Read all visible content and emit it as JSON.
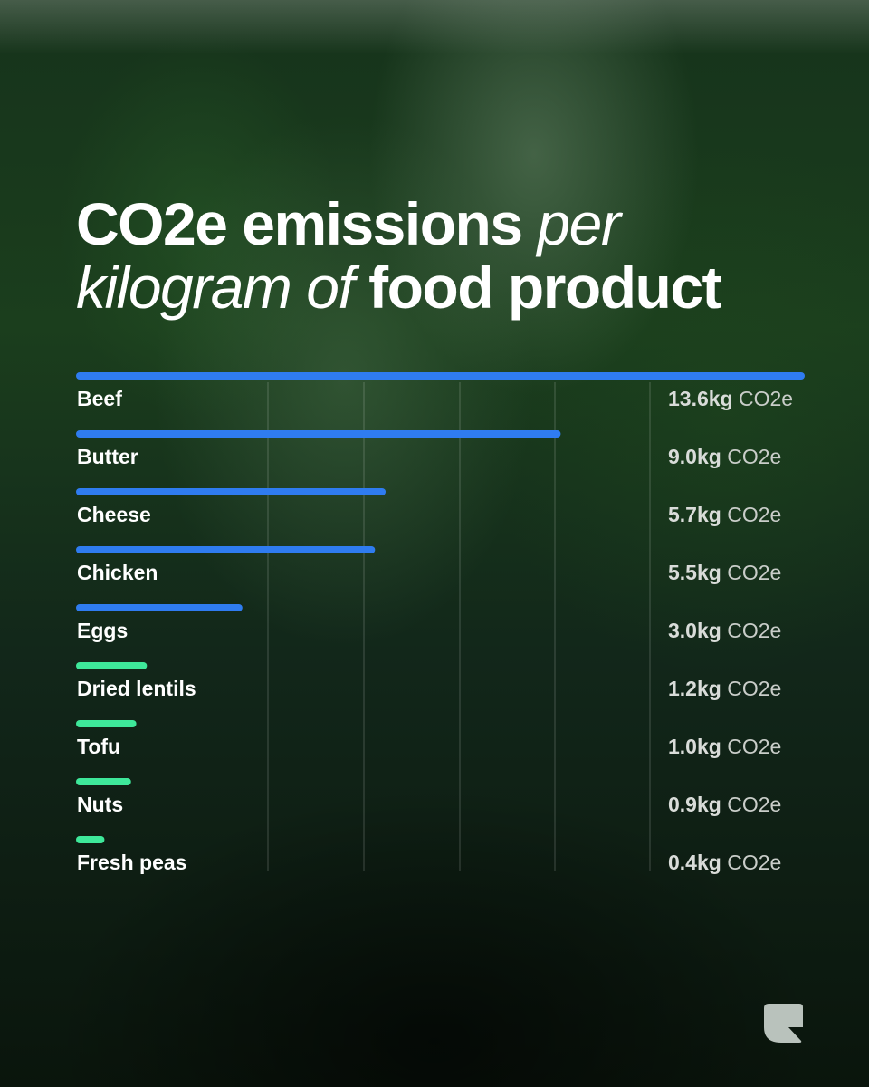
{
  "title": {
    "part1": "CO2e emissions",
    "part2": "per",
    "part3": "kilogram of",
    "part4": "food product"
  },
  "chart_data": {
    "type": "bar",
    "orientation": "horizontal",
    "title": "CO2e emissions per kilogram of food product",
    "unit": "kg CO2e",
    "unit_label": "CO2e",
    "xlim": [
      0,
      13.6
    ],
    "categories": [
      "Beef",
      "Butter",
      "Cheese",
      "Chicken",
      "Eggs",
      "Dried lentils",
      "Tofu",
      "Nuts",
      "Fresh peas"
    ],
    "values": [
      13.6,
      9.0,
      5.7,
      5.5,
      3.0,
      1.2,
      1.0,
      0.9,
      0.4
    ],
    "value_labels": [
      "13.6kg",
      "9.0kg",
      "5.7kg",
      "5.5kg",
      "3.0kg",
      "1.2kg",
      "1.0kg",
      "0.9kg",
      "0.4kg"
    ],
    "groups": [
      "animal",
      "animal",
      "animal",
      "animal",
      "animal",
      "plant",
      "plant",
      "plant",
      "plant"
    ],
    "colors": {
      "animal": "#2f7cf0",
      "plant": "#3ee89a"
    },
    "grid": true
  },
  "logo": {
    "name": "leaf-logo-icon",
    "color": "#b9c2bc"
  }
}
